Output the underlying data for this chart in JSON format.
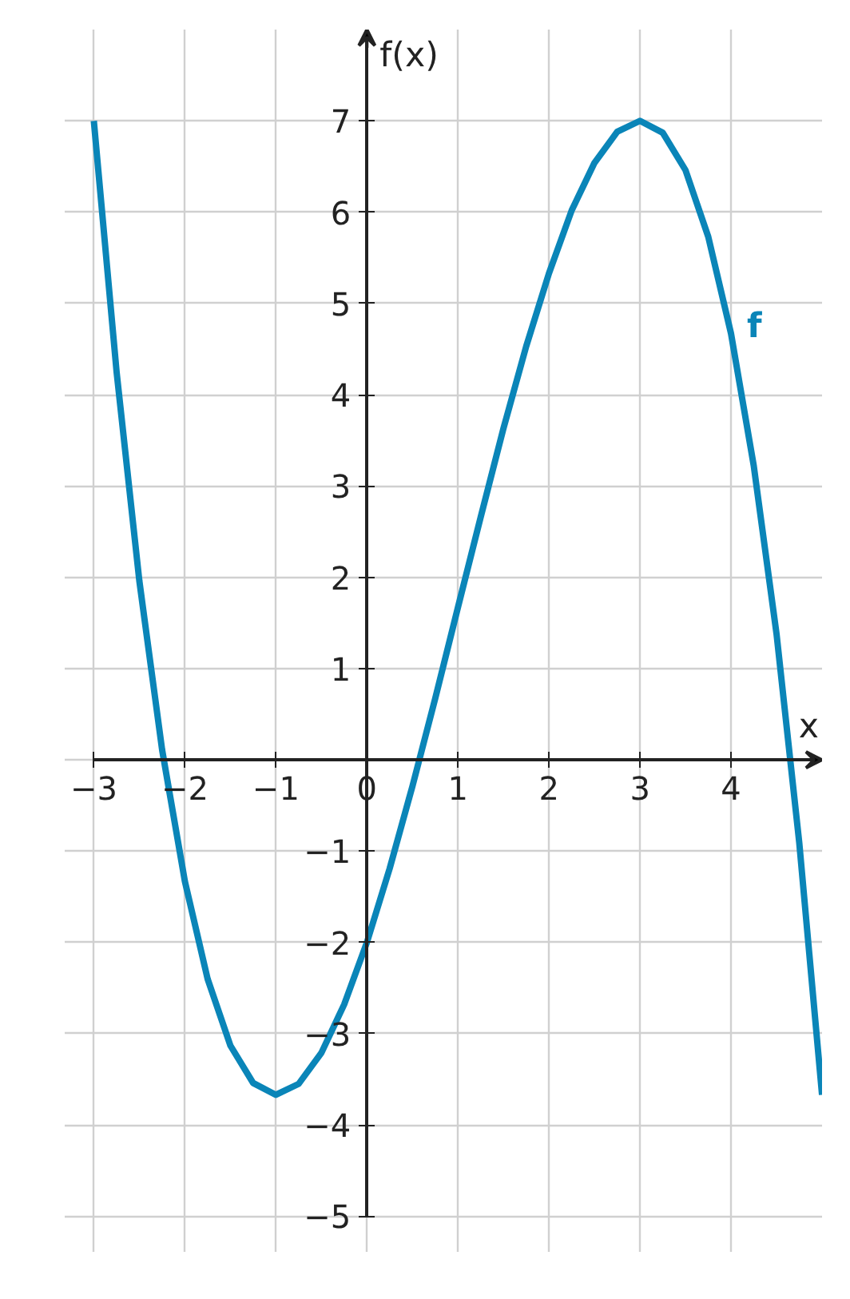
{
  "chart_data": {
    "type": "line",
    "xlabel": "x",
    "ylabel": "f(x)",
    "x": [
      -3,
      -2.75,
      -2.5,
      -2.25,
      -2,
      -1.75,
      -1.5,
      -1.25,
      -1,
      -0.75,
      -0.5,
      -0.25,
      0,
      0.25,
      0.5,
      0.75,
      1,
      1.25,
      1.5,
      1.75,
      2,
      2.25,
      2.5,
      2.75,
      3,
      3.25,
      3.5,
      3.75,
      4,
      4.25,
      4.5,
      4.75,
      5
    ],
    "series": [
      {
        "name": "f",
        "color": "#0a85b8",
        "values": [
          7,
          4.25,
          1.96,
          0.11,
          -1.33,
          -2.4,
          -3.13,
          -3.54,
          -3.67,
          -3.55,
          -3.21,
          -2.68,
          -2,
          -1.19,
          -0.29,
          0.67,
          1.67,
          2.66,
          3.63,
          4.53,
          5.33,
          6.02,
          6.54,
          6.88,
          7,
          6.87,
          6.46,
          5.73,
          4.67,
          3.22,
          1.38,
          -0.91,
          -3.67
        ]
      }
    ],
    "xlim": [
      -3,
      5
    ],
    "ylim": [
      -5,
      8
    ],
    "xticks": [
      -3,
      -2,
      -1,
      {
        "value": 0,
        "label": "0"
      },
      1,
      2,
      3,
      4
    ],
    "yticks": [
      -5,
      -4,
      -3,
      -2,
      -1,
      {
        "value": 0,
        "label": null
      },
      1,
      2,
      3,
      4,
      5,
      6,
      7
    ],
    "grid": true
  }
}
